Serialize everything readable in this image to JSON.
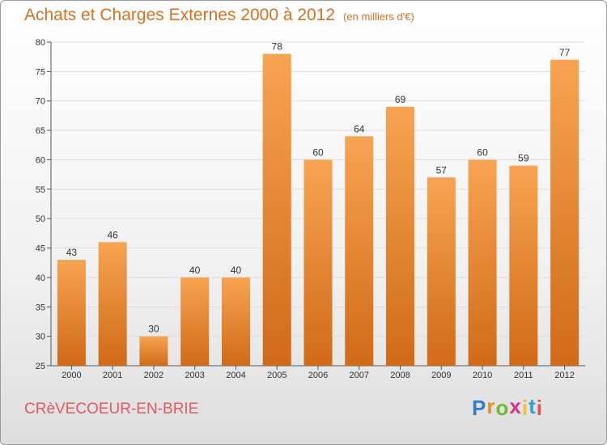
{
  "title": "Achats et Charges Externes 2000 à 2012",
  "unit": "(en milliers d'€)",
  "commune": "CRèVECOEUR-EN-BRIE",
  "brand": {
    "letters": [
      "P",
      "r",
      "o",
      "x",
      "i",
      "t",
      "i"
    ],
    "colors": [
      "#2f7fc8",
      "#e8901f",
      "#6dbb2e",
      "#d6338a",
      "#f2c12c",
      "#2f9fd8",
      "#e0504d"
    ]
  },
  "chart_data": {
    "type": "bar",
    "categories": [
      "2000",
      "2001",
      "2002",
      "2003",
      "2004",
      "2005",
      "2006",
      "2007",
      "2008",
      "2009",
      "2010",
      "2011",
      "2012"
    ],
    "values": [
      43,
      46,
      30,
      40,
      40,
      78,
      60,
      64,
      69,
      57,
      60,
      59,
      77
    ],
    "ylim": [
      25,
      80
    ],
    "yticks": [
      25,
      30,
      35,
      40,
      45,
      50,
      55,
      60,
      65,
      70,
      75,
      80
    ],
    "grid": true,
    "bar_color_top": "#f7a452",
    "bar_color_bottom": "#d06a18",
    "grid_color": "#dddddd"
  }
}
